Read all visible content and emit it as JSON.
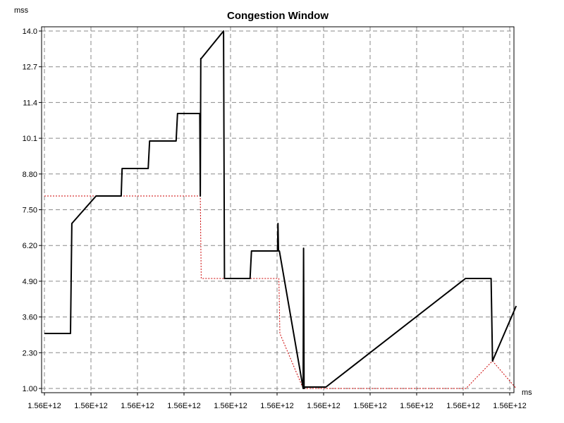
{
  "chart_data": {
    "type": "line",
    "title": "Congestion Window",
    "ylabel_unit": "mss",
    "xlabel_unit": "ms",
    "x_range": [
      0,
      100
    ],
    "ylim": [
      1.0,
      14.0
    ],
    "y_ticks": [
      "1.00",
      "2.30",
      "3.60",
      "4.90",
      "6.20",
      "7.50",
      "8.80",
      "10.1",
      "11.4",
      "12.7",
      "14.0"
    ],
    "x_ticks": [
      0,
      10,
      20,
      30,
      40,
      50,
      60,
      70,
      80,
      90,
      100
    ],
    "x_tick_label": "1.56E+12",
    "grid": true,
    "series": [
      {
        "color": "#000000",
        "style": "solid",
        "x": [
          0,
          5.6,
          5.9,
          11.1,
          16.5,
          16.7,
          22.3,
          22.6,
          28.3,
          28.6,
          33.4,
          33.5,
          33.6,
          33.7,
          38.5,
          38.7,
          44.2,
          44.5,
          50.1,
          50.2,
          50.3,
          50.5,
          55.6,
          55.7,
          55.8,
          56.0,
          60.5,
          90.5,
          96.0,
          96.3,
          101.4
        ],
        "y": [
          3.0,
          3.0,
          7.0,
          8.0,
          8.0,
          9.0,
          9.0,
          10.0,
          10.0,
          11.0,
          11.0,
          8.0,
          13.0,
          13.0,
          14.0,
          5.0,
          5.0,
          6.0,
          6.0,
          7.0,
          6.0,
          6.0,
          1.0,
          6.1,
          1.0,
          1.05,
          1.05,
          5.0,
          5.0,
          2.0,
          4.0
        ]
      },
      {
        "color": "#cc0000",
        "style": "dotted",
        "x": [
          0,
          11.1,
          33.5,
          33.7,
          50.4,
          50.6,
          55.6,
          90.6,
          96.3,
          101.4
        ],
        "y": [
          8.0,
          8.0,
          8.0,
          5.0,
          5.0,
          3.0,
          1.0,
          1.0,
          2.0,
          1.0
        ]
      }
    ],
    "y_tick_extra": [
      "101.4",
      "1.0"
    ]
  }
}
